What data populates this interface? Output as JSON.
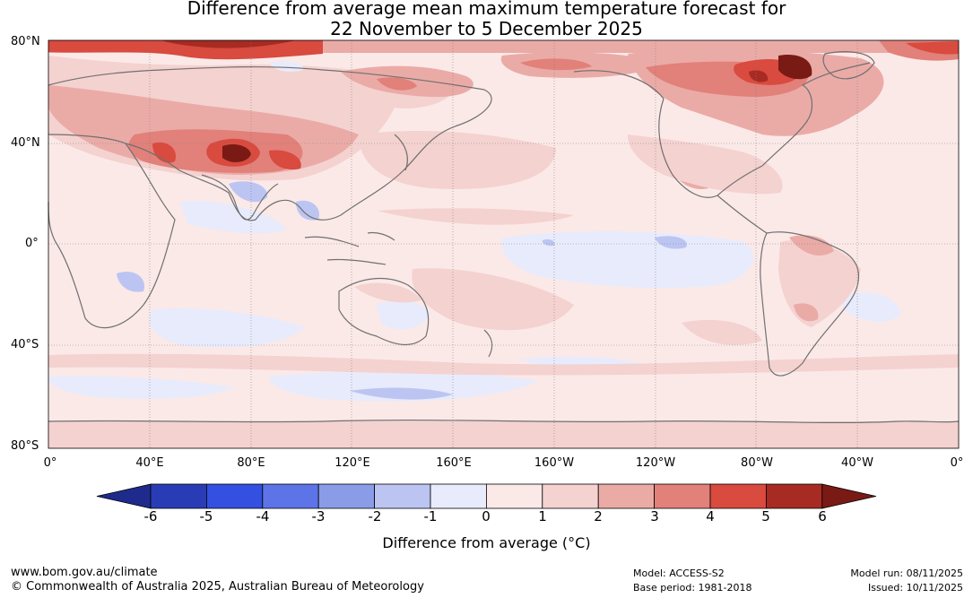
{
  "title_line1": "Difference from average mean maximum temperature forecast for",
  "title_line2": "22 November to 5 December 2025",
  "lat_labels": [
    "80°N",
    "40°N",
    "0°",
    "40°S",
    "80°S"
  ],
  "lon_labels": [
    "0°",
    "40°E",
    "80°E",
    "120°E",
    "160°E",
    "160°W",
    "120°W",
    "80°W",
    "40°W",
    "0°"
  ],
  "colorbar": {
    "ticks": [
      "-6",
      "-5",
      "-4",
      "-3",
      "-2",
      "-1",
      "0",
      "1",
      "2",
      "3",
      "4",
      "5",
      "6"
    ],
    "colors": [
      "#1e2b8c",
      "#2a3cb5",
      "#3450e0",
      "#5c74e8",
      "#8a9ce8",
      "#bcc5f2",
      "#e8ebfb",
      "#fbe9e8",
      "#f4d2d0",
      "#eaaba7",
      "#e2807a",
      "#d94a3f",
      "#a72b22",
      "#7a1a15"
    ],
    "label": "Difference from average (°C)"
  },
  "footer": {
    "website": "www.bom.gov.au/climate",
    "copyright": "© Commonwealth of Australia 2025, Australian Bureau of Meteorology",
    "model": "Model: ACCESS-S2",
    "base_period": "Base period: 1981-2018",
    "model_run": "Model run: 08/11/2025",
    "issued": "Issued: 10/11/2025"
  }
}
